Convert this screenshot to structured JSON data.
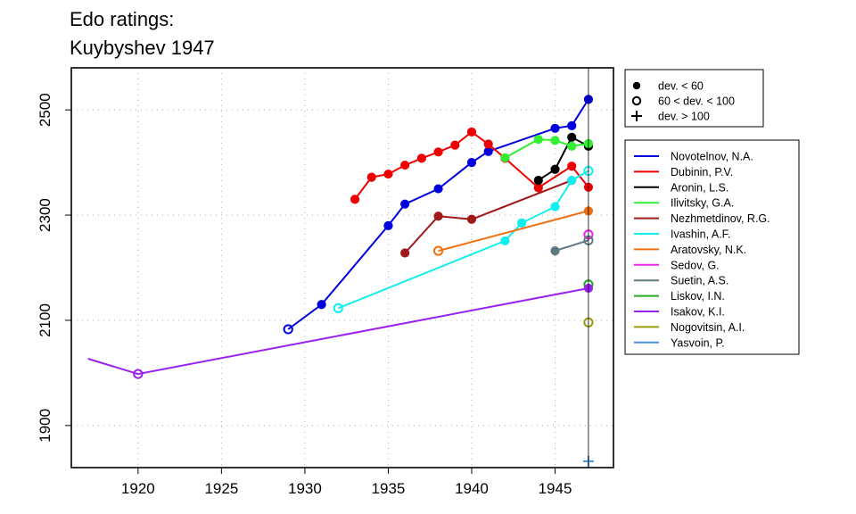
{
  "chart_data": {
    "type": "line",
    "title": [
      "Edo ratings:",
      "Kuybyshev 1947"
    ],
    "xlabel": "",
    "ylabel": "",
    "xlim": [
      1916,
      1948.5
    ],
    "ylim": [
      1820,
      2580
    ],
    "x_ticks": [
      1920,
      1925,
      1930,
      1935,
      1940,
      1945
    ],
    "y_ticks": [
      1900,
      2100,
      2300,
      2500
    ],
    "grid": true,
    "vline": 1947,
    "marker_legend": [
      {
        "label": "dev. < 60",
        "marker": "filled"
      },
      {
        "label": "60 < dev. < 100",
        "marker": "open"
      },
      {
        "label": "dev. > 100",
        "marker": "plus"
      }
    ],
    "series": [
      {
        "name": "Novotelnov, N.A.",
        "color": "#0000dd",
        "points": [
          [
            1929,
            2083,
            "o"
          ],
          [
            1931,
            2130,
            "f"
          ],
          [
            1935,
            2280,
            "f"
          ],
          [
            1936,
            2321,
            "f"
          ],
          [
            1938,
            2350,
            "f"
          ],
          [
            1940,
            2400,
            "f"
          ],
          [
            1941,
            2421,
            "f"
          ],
          [
            1945,
            2465,
            "f"
          ],
          [
            1946,
            2470,
            "f"
          ],
          [
            1947,
            2520,
            "f"
          ]
        ]
      },
      {
        "name": "Dubinin, P.V.",
        "color": "#ee0000",
        "points": [
          [
            1933,
            2330,
            "f"
          ],
          [
            1934,
            2372,
            "f"
          ],
          [
            1935,
            2378,
            "f"
          ],
          [
            1936,
            2395,
            "f"
          ],
          [
            1937,
            2408,
            "f"
          ],
          [
            1938,
            2420,
            "f"
          ],
          [
            1939,
            2433,
            "f"
          ],
          [
            1940,
            2458,
            "f"
          ],
          [
            1941,
            2435,
            "f"
          ],
          [
            1942,
            2408,
            "f"
          ],
          [
            1944,
            2352,
            "f"
          ],
          [
            1946,
            2393,
            "f"
          ],
          [
            1947,
            2353,
            "f"
          ]
        ]
      },
      {
        "name": "Aronin, L.S.",
        "color": "#000000",
        "points": [
          [
            1944,
            2366,
            "f"
          ],
          [
            1945,
            2387,
            "f"
          ],
          [
            1946,
            2448,
            "f"
          ],
          [
            1947,
            2431,
            "f"
          ]
        ]
      },
      {
        "name": "Ilivitsky, G.A.",
        "color": "#33ee33",
        "points": [
          [
            1942,
            2409,
            "f"
          ],
          [
            1944,
            2444,
            "f"
          ],
          [
            1945,
            2442,
            "f"
          ],
          [
            1946,
            2431,
            "f"
          ],
          [
            1947,
            2436,
            "f"
          ]
        ]
      },
      {
        "name": "Nezhmetdinov, R.G.",
        "color": "#a01a1a",
        "points": [
          [
            1936,
            2228,
            "f"
          ],
          [
            1938,
            2298,
            "f"
          ],
          [
            1940,
            2292,
            "f"
          ],
          [
            1946,
            2366,
            "f"
          ]
        ]
      },
      {
        "name": "Ivashin, A.F.",
        "color": "#11eeee",
        "points": [
          [
            1932,
            2123,
            "o"
          ],
          [
            1942,
            2251,
            "f"
          ],
          [
            1943,
            2285,
            "f"
          ],
          [
            1945,
            2316,
            "f"
          ],
          [
            1946,
            2366,
            "f"
          ],
          [
            1947,
            2384,
            "o"
          ]
        ]
      },
      {
        "name": "Aratovsky, N.K.",
        "color": "#f07010",
        "points": [
          [
            1938,
            2232,
            "o"
          ],
          [
            1947,
            2308,
            "f"
          ]
        ]
      },
      {
        "name": "Sedov, G.",
        "color": "#ee22ee",
        "points": [
          [
            1947,
            2263,
            "o"
          ]
        ]
      },
      {
        "name": "Suetin, A.S.",
        "color": "#607880",
        "points": [
          [
            1945,
            2232,
            "f"
          ],
          [
            1947,
            2252,
            "o"
          ]
        ]
      },
      {
        "name": "Liskov, I.N.",
        "color": "#22aa22",
        "points": [
          [
            1947,
            2168,
            "o"
          ]
        ]
      },
      {
        "name": "Isakov, K.I.",
        "color": "#9a22ee",
        "points": [
          [
            1917,
            2027,
            "n"
          ],
          [
            1920,
            1998,
            "o"
          ],
          [
            1947,
            2161,
            "f"
          ]
        ]
      },
      {
        "name": "Nogovitsin, A.I.",
        "color": "#9a9a10",
        "points": [
          [
            1947,
            2096,
            "o"
          ]
        ]
      },
      {
        "name": "Yasvoin, P.",
        "color": "#4a90dd",
        "points": [
          [
            1947,
            1832,
            "p"
          ]
        ]
      }
    ]
  }
}
